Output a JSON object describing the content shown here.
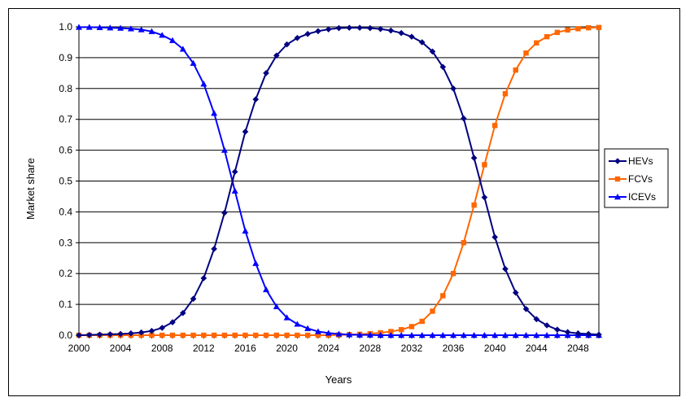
{
  "chart_data": {
    "type": "line",
    "title": "",
    "xlabel": "Years",
    "ylabel": "Market share",
    "xlim": [
      2000,
      2050
    ],
    "ylim": [
      0,
      1.0
    ],
    "x_ticks": [
      "2000",
      "2004",
      "2008",
      "2012",
      "2016",
      "2020",
      "2024",
      "2028",
      "2032",
      "2036",
      "2040",
      "2044",
      "2048"
    ],
    "y_ticks": [
      "0.0",
      "0.1",
      "0.2",
      "0.3",
      "0.4",
      "0.5",
      "0.6",
      "0.7",
      "0.8",
      "0.9",
      "1.0"
    ],
    "grid": "horizontal",
    "legend_position": "right",
    "x": [
      2000,
      2001,
      2002,
      2003,
      2004,
      2005,
      2006,
      2007,
      2008,
      2009,
      2010,
      2011,
      2012,
      2013,
      2014,
      2015,
      2016,
      2017,
      2018,
      2019,
      2020,
      2021,
      2022,
      2023,
      2024,
      2025,
      2026,
      2027,
      2028,
      2029,
      2030,
      2031,
      2032,
      2033,
      2034,
      2035,
      2036,
      2037,
      2038,
      2039,
      2040,
      2041,
      2042,
      2043,
      2044,
      2045,
      2046,
      2047,
      2048,
      2049,
      2050
    ],
    "series": [
      {
        "name": "HEVs",
        "color": "#000080",
        "marker": "diamond",
        "values": [
          0.0,
          0.001,
          0.002,
          0.003,
          0.004,
          0.006,
          0.009,
          0.014,
          0.024,
          0.042,
          0.072,
          0.118,
          0.185,
          0.28,
          0.397,
          0.53,
          0.66,
          0.765,
          0.85,
          0.907,
          0.943,
          0.964,
          0.977,
          0.986,
          0.992,
          0.996,
          0.997,
          0.997,
          0.996,
          0.993,
          0.988,
          0.98,
          0.968,
          0.95,
          0.92,
          0.87,
          0.8,
          0.703,
          0.575,
          0.447,
          0.318,
          0.215,
          0.138,
          0.085,
          0.052,
          0.032,
          0.018,
          0.01,
          0.006,
          0.004,
          0.002
        ]
      },
      {
        "name": "FCVs",
        "color": "#FF6600",
        "marker": "square",
        "values": [
          0,
          0,
          0,
          0,
          0,
          0,
          0,
          0,
          0,
          0,
          0,
          0,
          0,
          0,
          0,
          0,
          0,
          0,
          0,
          0,
          0,
          0,
          0,
          0,
          0,
          0.001,
          0.002,
          0.003,
          0.005,
          0.008,
          0.012,
          0.018,
          0.028,
          0.045,
          0.078,
          0.128,
          0.2,
          0.3,
          0.422,
          0.553,
          0.68,
          0.783,
          0.86,
          0.915,
          0.948,
          0.968,
          0.982,
          0.99,
          0.994,
          0.997,
          0.998
        ]
      },
      {
        "name": "ICEVs",
        "color": "#0000FF",
        "marker": "triangle",
        "values": [
          0.999,
          0.999,
          0.998,
          0.997,
          0.996,
          0.994,
          0.991,
          0.985,
          0.973,
          0.956,
          0.928,
          0.882,
          0.815,
          0.72,
          0.6,
          0.468,
          0.338,
          0.233,
          0.148,
          0.093,
          0.057,
          0.036,
          0.022,
          0.012,
          0.007,
          0.004,
          0.002,
          0.001,
          0.001,
          0,
          0,
          0,
          0,
          0,
          0,
          0,
          0,
          0,
          0,
          0,
          0,
          0,
          0,
          0,
          0,
          0,
          0,
          0,
          0,
          0,
          0
        ]
      }
    ]
  }
}
